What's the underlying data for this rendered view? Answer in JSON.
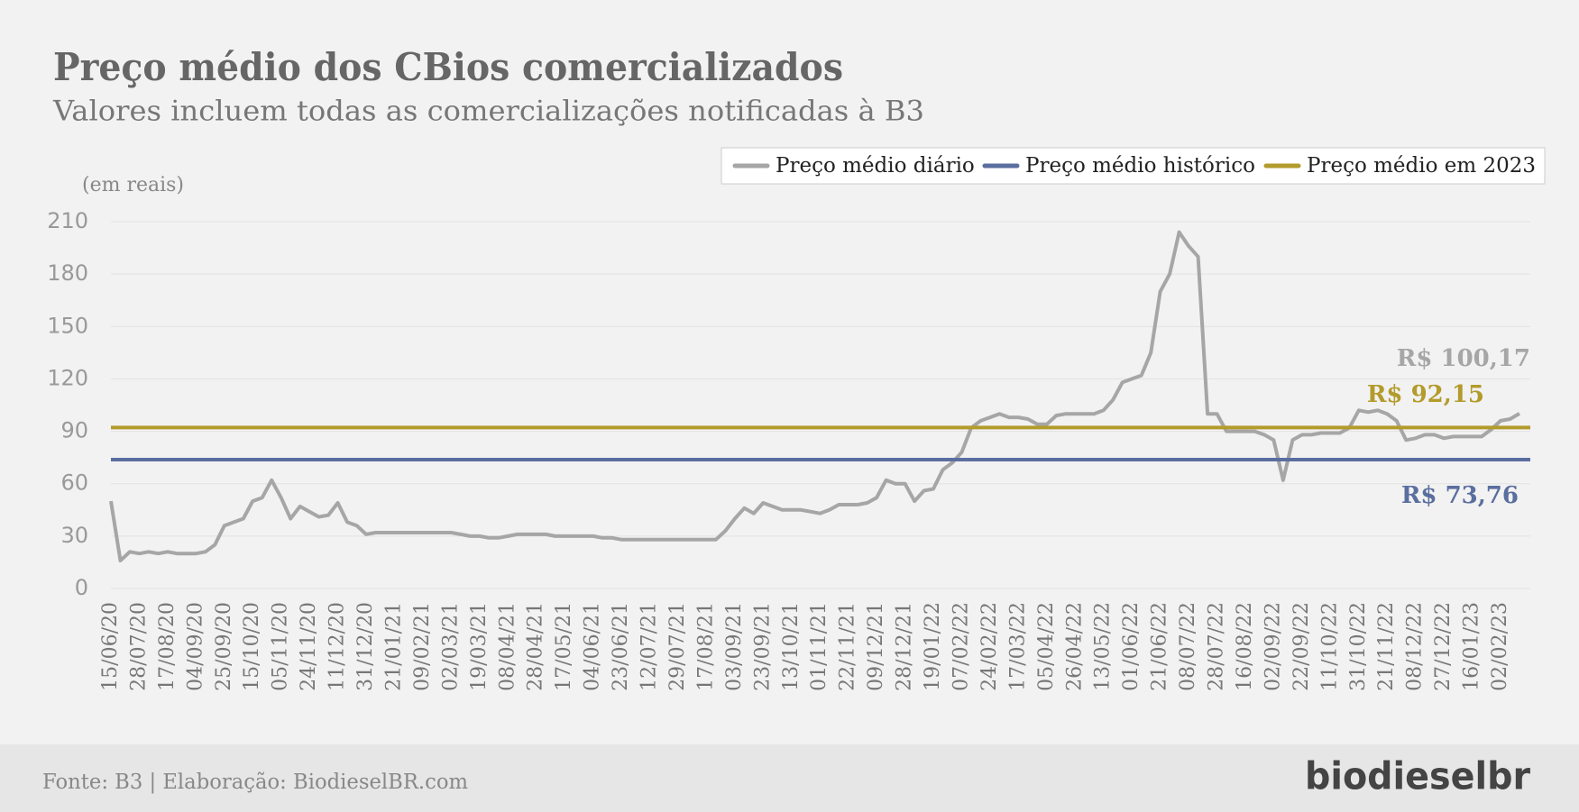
{
  "chart_data": {
    "type": "line",
    "title": "Preço médio dos CBios comercializados",
    "subtitle": "Valores incluem todas as comercializações notificadas à B3",
    "y_unit": "(em reais)",
    "source": "Fonte: B3 | Elaboração: BiodieselBR.com",
    "brand": "biodieselbr",
    "ylim": [
      0,
      210
    ],
    "yticks": [
      0,
      30,
      60,
      90,
      120,
      150,
      180,
      210
    ],
    "grid": true,
    "legend": "top-right",
    "categories": [
      "15/06/20",
      null,
      null,
      "28/07/20",
      null,
      null,
      "17/08/20",
      null,
      null,
      "04/09/20",
      null,
      null,
      "25/09/20",
      null,
      null,
      "15/10/20",
      null,
      null,
      "05/11/20",
      null,
      null,
      "24/11/20",
      null,
      null,
      "11/12/20",
      null,
      null,
      "31/12/20",
      null,
      null,
      "21/01/21",
      null,
      null,
      "09/02/21",
      null,
      null,
      "02/03/21",
      null,
      null,
      "19/03/21",
      null,
      null,
      "08/04/21",
      null,
      null,
      "28/04/21",
      null,
      null,
      "17/05/21",
      null,
      null,
      "04/06/21",
      null,
      null,
      "23/06/21",
      null,
      null,
      "12/07/21",
      null,
      null,
      "29/07/21",
      null,
      null,
      "17/08/21",
      null,
      null,
      "03/09/21",
      null,
      null,
      "23/09/21",
      null,
      null,
      "13/10/21",
      null,
      null,
      "01/11/21",
      null,
      null,
      "22/11/21",
      null,
      null,
      "09/12/21",
      null,
      null,
      "28/12/21",
      null,
      null,
      "19/01/22",
      null,
      null,
      "07/02/22",
      null,
      null,
      "24/02/22",
      null,
      null,
      "17/03/22",
      null,
      null,
      "05/04/22",
      null,
      null,
      "26/04/22",
      null,
      null,
      "13/05/22",
      null,
      null,
      "01/06/22",
      null,
      null,
      "21/06/22",
      null,
      null,
      "08/07/22",
      null,
      null,
      "28/07/22",
      null,
      null,
      "16/08/22",
      null,
      null,
      "02/09/22",
      null,
      null,
      "22/09/22",
      null,
      null,
      "11/10/22",
      null,
      null,
      "31/10/22",
      null,
      null,
      "21/11/22",
      null,
      null,
      "08/12/22",
      null,
      null,
      "27/12/22",
      null,
      null,
      "16/01/23",
      null,
      null,
      "02/02/23",
      null,
      null
    ],
    "series": [
      {
        "name": "Preço médio diário",
        "color": "#a6a6a6",
        "end_label": "R$ 100,17",
        "values": [
          50,
          16,
          21,
          20,
          21,
          20,
          21,
          20,
          20,
          20,
          21,
          25,
          36,
          38,
          40,
          50,
          52,
          62,
          52,
          40,
          47,
          44,
          41,
          42,
          49,
          38,
          36,
          31,
          32,
          32,
          32,
          32,
          32,
          32,
          32,
          32,
          32,
          31,
          30,
          30,
          29,
          29,
          30,
          31,
          31,
          31,
          31,
          30,
          30,
          30,
          30,
          30,
          29,
          29,
          28,
          28,
          28,
          28,
          28,
          28,
          28,
          28,
          28,
          28,
          28,
          33,
          40,
          46,
          43,
          49,
          47,
          45,
          45,
          45,
          44,
          43,
          45,
          48,
          48,
          48,
          49,
          52,
          62,
          60,
          60,
          50,
          56,
          57,
          68,
          72,
          78,
          92,
          96,
          98,
          100,
          98,
          98,
          97,
          94,
          94,
          99,
          100,
          100,
          100,
          100,
          102,
          108,
          118,
          120,
          122,
          135,
          170,
          180,
          204,
          196,
          190,
          100,
          100,
          90,
          90,
          90,
          90,
          88,
          85,
          62,
          85,
          88,
          88,
          89,
          89,
          89,
          92,
          102,
          101,
          102,
          100,
          96,
          85,
          86,
          88,
          88,
          86,
          87,
          87,
          87,
          87,
          91,
          96,
          97,
          100.17
        ]
      }
    ],
    "reference_lines": [
      {
        "name": "Preço médio histórico",
        "color": "#5a6e9f",
        "value": 73.76,
        "label": "R$ 73,76"
      },
      {
        "name": "Preço médio em 2023",
        "color": "#b39b2c",
        "value": 92.15,
        "label": "R$ 92,15"
      }
    ]
  }
}
